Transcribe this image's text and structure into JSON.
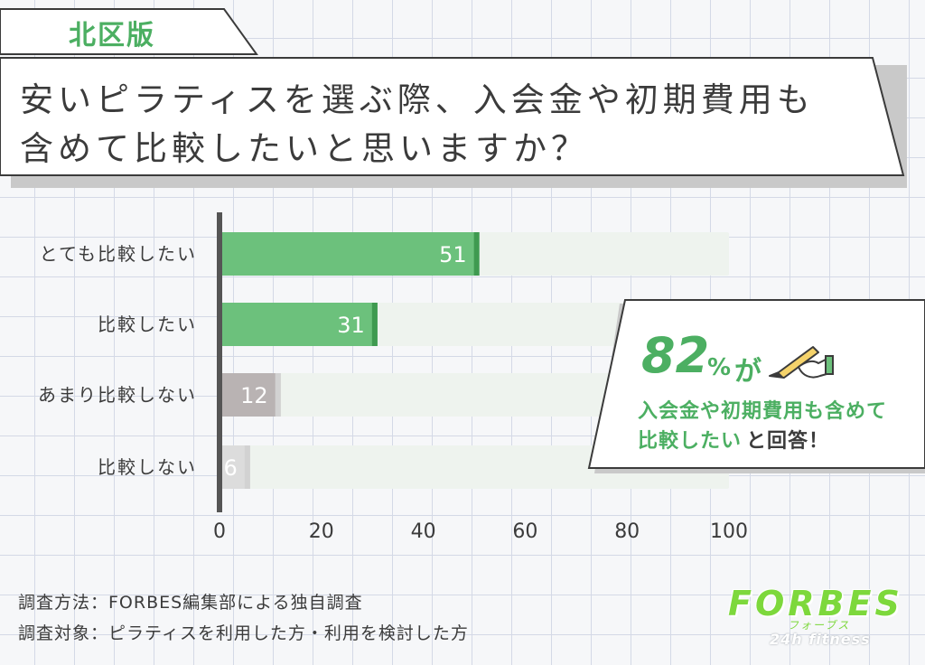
{
  "region_tag": "北区版",
  "title": {
    "line1": "安いピラティスを選ぶ際、入会金や初期費用も",
    "line2": "含めて比較したいと思いますか？"
  },
  "chart_data": {
    "type": "bar",
    "orientation": "horizontal",
    "categories": [
      "とても比較したい",
      "比較したい",
      "あまり比較しない",
      "比較しない"
    ],
    "values": [
      51,
      31,
      12,
      6
    ],
    "xlim": [
      0,
      100
    ],
    "xticks": [
      "0",
      "20",
      "40",
      "60",
      "80",
      "100"
    ],
    "title": "",
    "xlabel": "",
    "ylabel": "",
    "grid": false,
    "colors": {
      "positive": "#6cc17c",
      "positive_edge": "#3f9a50",
      "negative_1": "#b9b3b3",
      "negative_2": "#dcdcdc",
      "negative_edge": "#d2d2d2",
      "track": "#eef3ee",
      "axis": "#555555"
    }
  },
  "callout": {
    "big_number": "82",
    "percent": "%",
    "particle": "が",
    "line1": "入会金や初期費用も含めて",
    "line2_highlight": "比較したい",
    "line2_rest": "と回答！",
    "icon": "pencil-hand-icon"
  },
  "notes": {
    "method": "調査方法：FORBES編集部による独自調査",
    "target": "調査対象：ピラティスを利用した方・利用を検討した方"
  },
  "logo": {
    "main": "FORBES",
    "kana": "フォーブス",
    "sub": "24h fitness"
  }
}
